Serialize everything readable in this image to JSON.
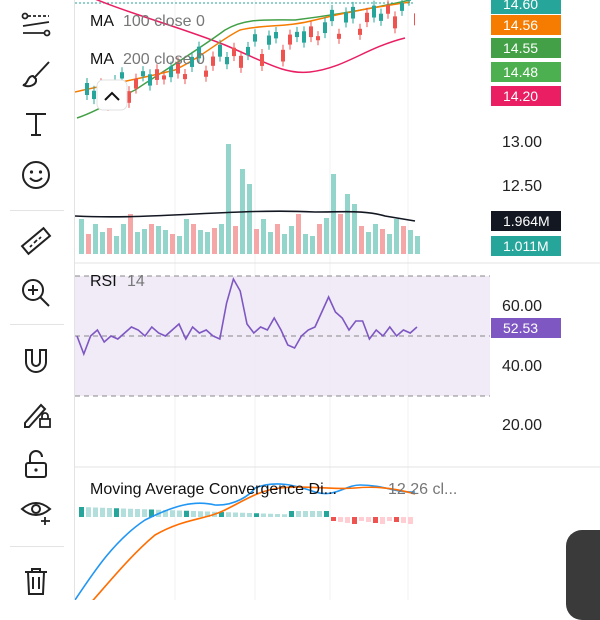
{
  "price_legend": {
    "ma100": {
      "name": "MA",
      "params": "100 close 0"
    },
    "ma200": {
      "name": "MA",
      "params": "200 close 0"
    }
  },
  "price_badges": [
    {
      "value": "14.60",
      "color": "#26a69a"
    },
    {
      "value": "14.56",
      "color": "#f57c00"
    },
    {
      "value": "14.55",
      "color": "#43a047"
    },
    {
      "value": "14.48",
      "color": "#4caf50"
    },
    {
      "value": "14.20",
      "color": "#e91e63"
    }
  ],
  "price_axis": {
    "ticks": [
      "13.00",
      "12.50"
    ]
  },
  "volume_badges": [
    {
      "value": "1.964M",
      "color": "#131722"
    },
    {
      "value": "1.011M",
      "color": "#26a69a"
    }
  ],
  "rsi": {
    "title": "RSI",
    "params": "14",
    "value": "52.53",
    "value_color": "#7e57c2",
    "ticks": [
      "60.00",
      "40.00",
      "20.00"
    ],
    "upper": 70,
    "lower": 30,
    "series": [
      50,
      44,
      50,
      52,
      48,
      50,
      49,
      51,
      53,
      52,
      50,
      53,
      51,
      50,
      52,
      54,
      49,
      53,
      51,
      52,
      50,
      49,
      61,
      69,
      65,
      54,
      51,
      53,
      52,
      56,
      52,
      47,
      46,
      50,
      52,
      53,
      58,
      63,
      58,
      56,
      52,
      55,
      55,
      49,
      52,
      50,
      53,
      50,
      52,
      51,
      53
    ]
  },
  "macd": {
    "title": "Moving Average Convergence Di...",
    "params": "12 26 cl..."
  },
  "colors": {
    "up": "#26a69a",
    "down": "#ef5350",
    "rsi_line": "#7e57c2",
    "ma_pink": "#e91e63",
    "ma_green": "#43a047",
    "ma_orange": "#f57c00",
    "macd_line": "#2196f3",
    "signal_line": "#ff6d00"
  },
  "tools": [
    "trend-line-icon",
    "brush-icon",
    "text-icon",
    "emoji-icon",
    "ruler-icon",
    "zoom-in-icon",
    "magnet-icon",
    "lock-drawing-icon",
    "unlock-icon",
    "eye-icon",
    "trash-icon"
  ]
}
